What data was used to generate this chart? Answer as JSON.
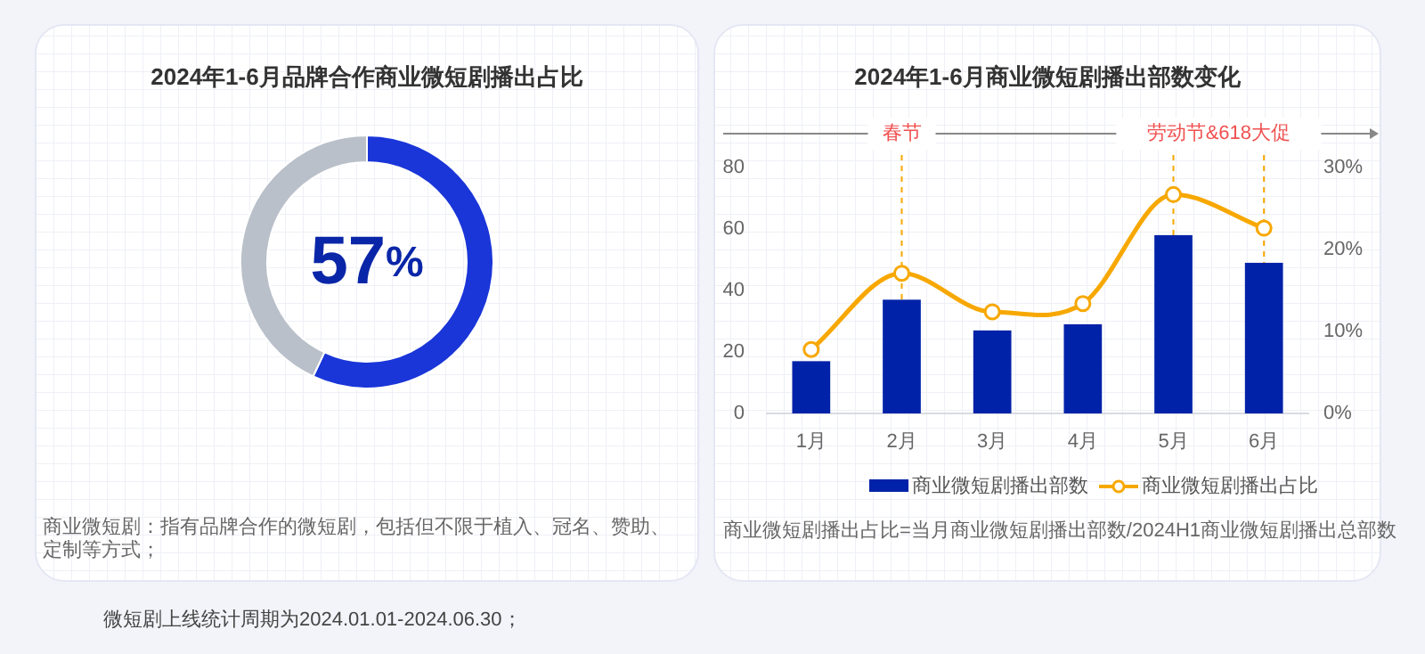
{
  "chart_data": [
    {
      "type": "donut",
      "title": "2024年1-6月品牌合作商业微短剧播出占比",
      "categories": [
        null,
        null
      ],
      "values": [
        57,
        43
      ],
      "colors": [
        "#1a36d8",
        "#b9c0ca"
      ],
      "value_labels": [
        "57%",
        null
      ],
      "annotations": [
        "商业微短剧：指有品牌合作的微短剧，包括但不限于植入、冠名、赞助、定制等方式；"
      ]
    },
    {
      "type": "bar",
      "title": "2024年1-6月商业微短剧播出部数变化",
      "categories": [
        "1月",
        "2月",
        "3月",
        "4月",
        "5月",
        "6月"
      ],
      "series": [
        {
          "name": "商业微短剧播出部数",
          "type": "bar",
          "color": "#0022a8",
          "values": [
            17,
            37,
            27,
            29,
            58,
            49
          ]
        },
        {
          "name": "商业微短剧播出占比",
          "type": "line",
          "axis": "y2",
          "color": "#f7a800",
          "values": [
            7.8,
            17.1,
            12.4,
            13.4,
            26.7,
            22.6
          ]
        }
      ],
      "ylim": [
        0,
        80
      ],
      "yticks": [
        0,
        20,
        40,
        60,
        80
      ],
      "y2lim": [
        0,
        30
      ],
      "y2ticks": [
        {
          "value": 0,
          "label": "0%"
        },
        {
          "value": 10,
          "label": "10%"
        },
        {
          "value": 20,
          "label": "20%"
        },
        {
          "value": 30,
          "label": "30%"
        }
      ],
      "marker": "circle",
      "legend": "bottom",
      "ref_lines": [
        {
          "axis": "x",
          "value": "2月",
          "label": "春节",
          "color": "#f7a800",
          "line_style": "dashed"
        },
        {
          "axis": "x",
          "value": "5月",
          "label": "劳动节&618大促",
          "color": "#f7a800",
          "line_style": "dashed"
        },
        {
          "axis": "x",
          "value": "6月",
          "label": null,
          "color": "#f7a800",
          "line_style": "dashed"
        }
      ],
      "annotations": [
        "商业微短剧播出占比=当月商业微短剧播出部数/2024H1商业微短剧播出总部数",
        "微短剧上线统计周期为2024.01.01-2024.06.30；"
      ]
    }
  ]
}
